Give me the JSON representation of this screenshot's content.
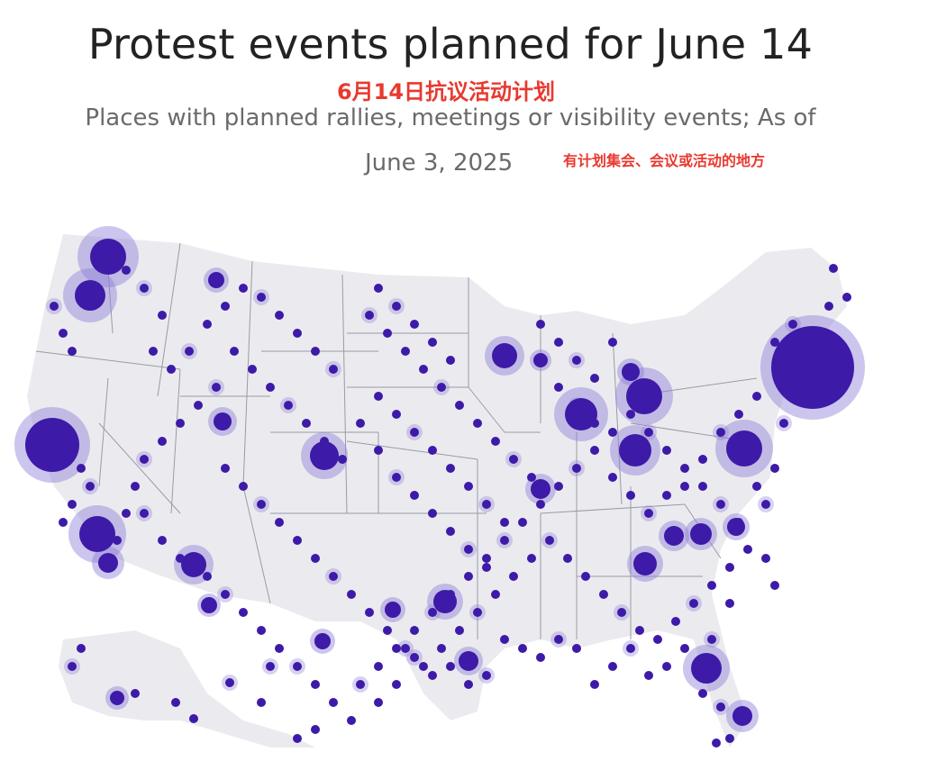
{
  "header": {
    "title": "Protest events planned for June 14",
    "title_zh": "6月14日抗议活动计划",
    "subtitle": "Places with planned rallies, meetings or visibility events; As of",
    "as_of_date": "June 3, 2025",
    "subtitle_zh": "有计划集会、会议或活动的地方"
  },
  "colors": {
    "dot": "#3d1aa8",
    "halo": "#8f7fd8",
    "land": "#ebebef",
    "border": "#9a9aa8",
    "annotation_red": "#e8392f"
  },
  "map": {
    "region": "United States",
    "marker": "planned protest event location",
    "large_clusters": [
      "Seattle",
      "Portland",
      "San Francisco Bay Area",
      "Los Angeles",
      "San Diego",
      "Phoenix",
      "Denver",
      "Chicago",
      "Detroit",
      "Washington, D.C.",
      "New York City / Northeast",
      "Atlanta",
      "Houston",
      "Austin",
      "Miami",
      "Tampa"
    ]
  }
}
